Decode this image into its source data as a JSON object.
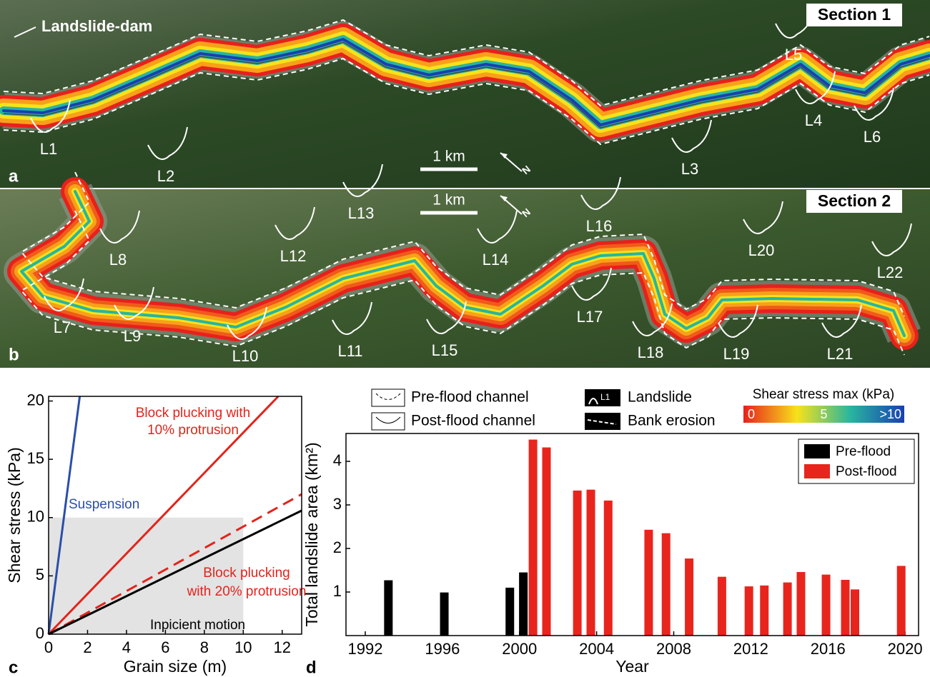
{
  "maps": [
    {
      "panel": "a",
      "section": "Section 1",
      "annotation": "Landslide-dam",
      "scale_label": "1 km",
      "north": "N",
      "landslides": [
        "L1",
        "L2",
        "L3",
        "L4",
        "L5",
        "L6"
      ]
    },
    {
      "panel": "b",
      "section": "Section 2",
      "scale_label": "1 km",
      "north": "N",
      "landslides": [
        "L7",
        "L8",
        "L9",
        "L10",
        "L11",
        "L12",
        "L13",
        "L14",
        "L15",
        "L16",
        "L17",
        "L18",
        "L19",
        "L20",
        "L21",
        "L22"
      ]
    }
  ],
  "legend": {
    "pre_flood_channel": "Pre-flood channel",
    "post_flood_channel": "Post-flood channel",
    "landslide": "Landslide",
    "landslide_icon": "L1",
    "bank_erosion": "Bank erosion"
  },
  "colorbar": {
    "title": "Shear stress max (kPa)",
    "clim": [
      0,
      10
    ],
    "ticks": [
      0,
      5,
      {
        "value": 10,
        "label": ">10"
      }
    ],
    "colors": [
      "#e8201c",
      "#f7e21a",
      "#27b5a0",
      "#1a3fb0"
    ]
  },
  "chart_data": [
    {
      "type": "line",
      "panel": "c",
      "xlabel": "Grain size (m)",
      "ylabel": "Shear stress (kPa)",
      "xlim": [
        0,
        13
      ],
      "ylim": [
        0,
        20.4
      ],
      "xticks": [
        0,
        2,
        4,
        6,
        8,
        10,
        12
      ],
      "yticks": [
        0,
        5,
        10,
        15,
        20
      ],
      "shaded_region": {
        "x": [
          0,
          10
        ],
        "y": [
          0,
          10
        ],
        "color": "#e3e3e3"
      },
      "series": [
        {
          "label": [
            "Suspension"
          ],
          "color": "#2a4fa8",
          "x": [
            0,
            1.6
          ],
          "values": [
            0,
            20.4
          ]
        },
        {
          "label": [
            "Block plucking with",
            "10% protrusion"
          ],
          "color": "#e3241b",
          "x": [
            0,
            11.8
          ],
          "values": [
            0,
            20.4
          ]
        },
        {
          "label": [
            "Block plucking",
            "with 20% protrusion"
          ],
          "color": "#e3241b",
          "dashed": true,
          "x": [
            0,
            13
          ],
          "values": [
            0,
            12
          ]
        },
        {
          "label": [
            "Inpicient motion"
          ],
          "color": "#000000",
          "x": [
            0,
            13
          ],
          "values": [
            0,
            10.6
          ]
        }
      ]
    },
    {
      "type": "bar",
      "panel": "d",
      "xlabel": "Year",
      "ylabel": "Total landslide area (km²)",
      "xlim": [
        1991,
        2020.7
      ],
      "ylim": [
        0,
        4.64
      ],
      "xticks": [
        1992,
        1996,
        2000,
        2004,
        2008,
        2012,
        2016,
        2020
      ],
      "yticks": [
        1,
        2,
        3,
        4
      ],
      "legend": "upper right",
      "series": [
        {
          "name": "Pre-flood",
          "color": "#000000",
          "x": [
            1993.2,
            1996.1,
            1999.5,
            2000.2
          ],
          "values": [
            1.27,
            0.99,
            1.1,
            1.45
          ]
        },
        {
          "name": "Post-flood",
          "color": "#e8251d",
          "x": [
            2000.7,
            2001.4,
            2003.0,
            2003.7,
            2004.6,
            2006.7,
            2007.6,
            2008.8,
            2010.5,
            2011.9,
            2012.7,
            2013.9,
            2014.6,
            2015.9,
            2016.9,
            2017.4,
            2019.8
          ],
          "values": [
            4.5,
            4.32,
            3.33,
            3.35,
            3.1,
            2.43,
            2.35,
            1.77,
            1.35,
            1.13,
            1.15,
            1.22,
            1.46,
            1.4,
            1.28,
            1.06,
            1.6
          ]
        }
      ]
    }
  ]
}
